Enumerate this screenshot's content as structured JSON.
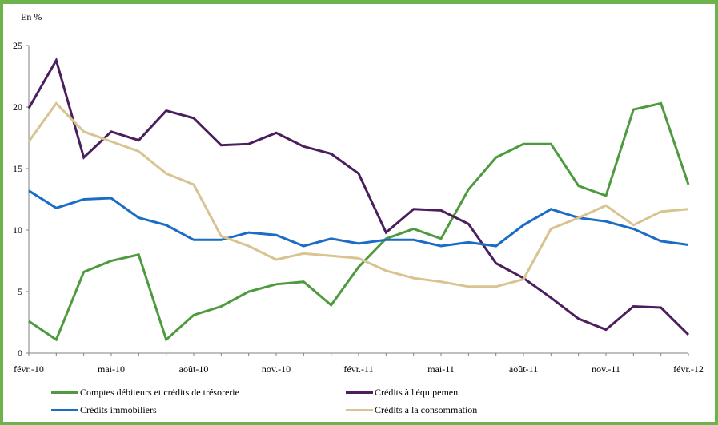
{
  "chart_data": {
    "type": "line",
    "unit_label": "En %",
    "ylim": [
      0,
      25
    ],
    "y_ticks": [
      "0",
      "5",
      "10",
      "15",
      "20",
      "25"
    ],
    "x_tick_labels": [
      "févr.-10",
      "mai-10",
      "août-10",
      "nov.-10",
      "févr.-11",
      "mai-11",
      "août-11",
      "nov.-11",
      "févr.-12"
    ],
    "x_points": [
      "févr.-10",
      "mars-10",
      "avr.-10",
      "mai-10",
      "juin-10",
      "juil.-10",
      "août-10",
      "sept.-10",
      "oct.-10",
      "nov.-10",
      "déc.-10",
      "janv.-11",
      "févr.-11",
      "mars-11",
      "avr.-11",
      "mai-11",
      "juin-11",
      "juil.-11",
      "août-11",
      "sept.-11",
      "oct.-11",
      "nov.-11",
      "déc.-11",
      "janv.-12",
      "févr.-12"
    ],
    "grid": false,
    "legend_placement": "bottom",
    "series": [
      {
        "name": "Comptes débiteurs et crédits de trésorerie",
        "color": "#4e9a3e",
        "values": [
          2.6,
          1.1,
          6.6,
          7.5,
          8.0,
          1.1,
          3.1,
          3.8,
          5.0,
          5.6,
          5.8,
          3.9,
          7.0,
          9.3,
          10.1,
          9.3,
          13.3,
          15.9,
          17.0,
          17.0,
          13.6,
          12.8,
          19.8,
          20.3,
          13.7
        ]
      },
      {
        "name": "Crédits à l'équipement",
        "color": "#4b1e5e",
        "values": [
          19.9,
          23.8,
          15.9,
          18.0,
          17.3,
          19.7,
          19.1,
          16.9,
          17.0,
          17.9,
          16.8,
          16.2,
          14.6,
          9.8,
          11.7,
          11.6,
          10.5,
          7.3,
          6.1,
          4.5,
          2.8,
          1.9,
          3.8,
          3.7,
          1.5
        ]
      },
      {
        "name": "Crédits immobiliers",
        "color": "#1a6cc4",
        "values": [
          13.2,
          11.8,
          12.5,
          12.6,
          11.0,
          10.4,
          9.2,
          9.2,
          9.8,
          9.6,
          8.7,
          9.3,
          8.9,
          9.2,
          9.2,
          8.7,
          9.0,
          8.7,
          10.4,
          11.7,
          11.0,
          10.7,
          10.1,
          9.1,
          8.8
        ]
      },
      {
        "name": "Crédits à la consommation",
        "color": "#d8c391",
        "values": [
          17.2,
          20.3,
          18.0,
          17.2,
          16.4,
          14.6,
          13.7,
          9.5,
          8.7,
          7.6,
          8.1,
          7.9,
          7.7,
          6.7,
          6.1,
          5.8,
          5.4,
          5.4,
          6.0,
          10.1,
          11.0,
          12.0,
          10.4,
          11.5,
          11.7
        ]
      }
    ]
  }
}
